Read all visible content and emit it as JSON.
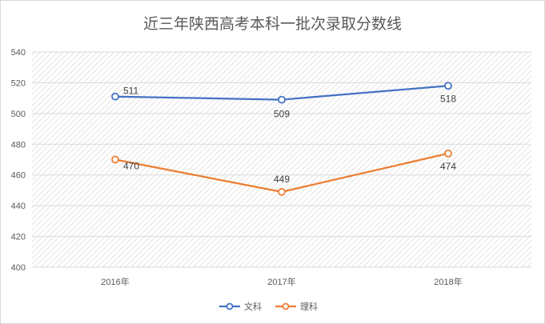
{
  "chart_data": {
    "type": "line",
    "title": "近三年陕西高考本科一批次录取分数线",
    "categories": [
      "2016年",
      "2017年",
      "2018年"
    ],
    "ylim": [
      400,
      540
    ],
    "yticks": [
      400,
      420,
      440,
      460,
      480,
      500,
      520,
      540
    ],
    "grid": true,
    "legend_position": "bottom",
    "series": [
      {
        "name": "文科",
        "values": [
          511,
          509,
          518
        ],
        "color": "#4472c4"
      },
      {
        "name": "理科",
        "values": [
          470,
          449,
          474
        ],
        "color": "#ed7d31"
      }
    ]
  }
}
